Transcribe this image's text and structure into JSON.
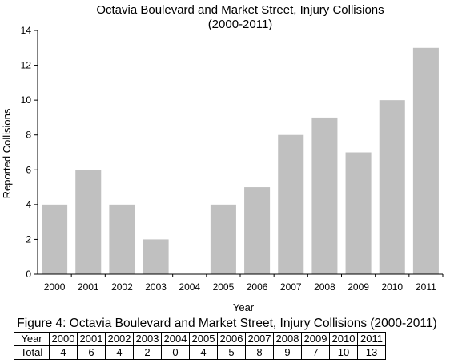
{
  "chart_data": {
    "type": "bar",
    "title_line1": "Octavia Boulevard and Market Street, Injury Collisions",
    "title_line2": "(2000-2011)",
    "xlabel": "Year",
    "ylabel": "Reported Collisions",
    "ylim": [
      0,
      14
    ],
    "yticks": [
      0,
      2,
      4,
      6,
      8,
      10,
      12,
      14
    ],
    "categories": [
      "2000",
      "2001",
      "2002",
      "2003",
      "2004",
      "2005",
      "2006",
      "2007",
      "2008",
      "2009",
      "2010",
      "2011"
    ],
    "values": [
      4,
      6,
      4,
      2,
      0,
      4,
      5,
      8,
      9,
      7,
      10,
      13
    ],
    "bar_color": "#c0c0c0",
    "grid": false,
    "legend": "none"
  },
  "caption": "Figure 4: Octavia Boulevard and Market Street, Injury Collisions (2000-2011)",
  "table": {
    "row1_label": "Year",
    "row2_label": "Total",
    "years": [
      "2000",
      "2001",
      "2002",
      "2003",
      "2004",
      "2005",
      "2006",
      "2007",
      "2008",
      "2009",
      "2010",
      "2011"
    ],
    "totals": [
      "4",
      "6",
      "4",
      "2",
      "0",
      "4",
      "5",
      "8",
      "9",
      "7",
      "10",
      "13"
    ]
  }
}
